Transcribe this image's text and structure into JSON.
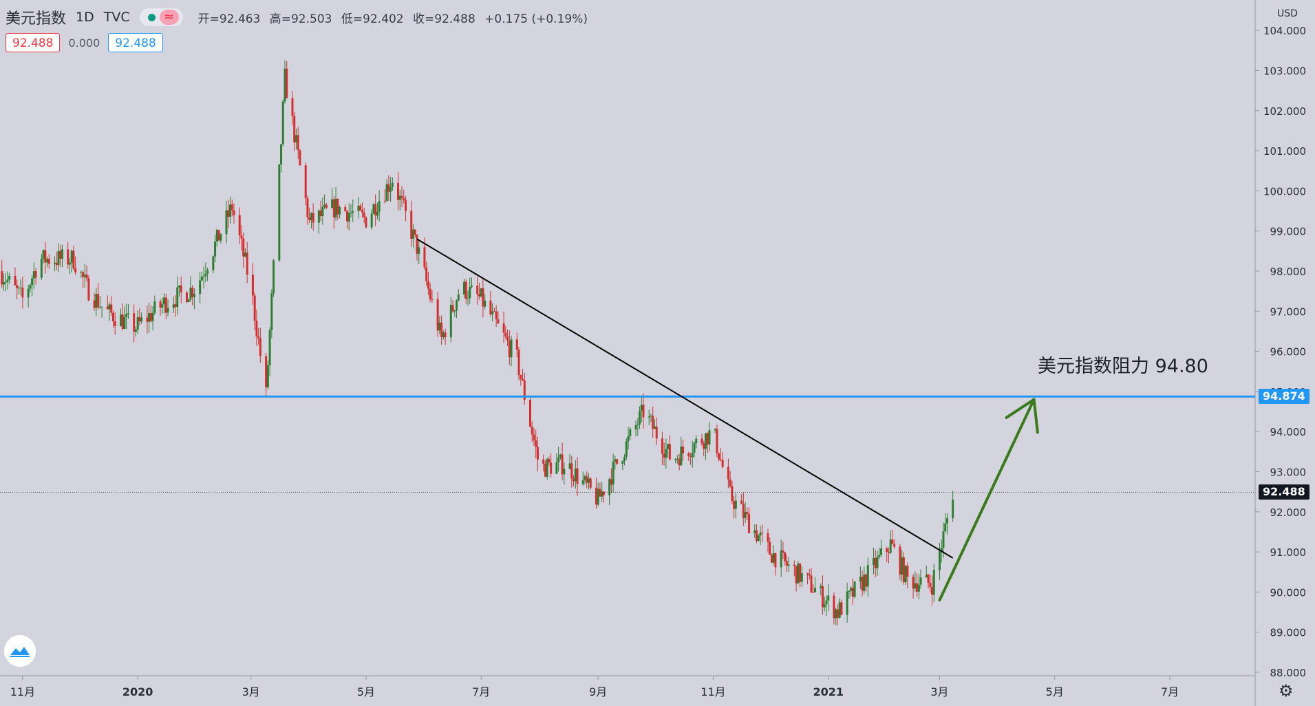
{
  "header": {
    "symbol": "美元指数",
    "interval": "1D",
    "exchange": "TVC",
    "wave_icon": "≈",
    "ohlc": {
      "open": "开=92.463",
      "high": "高=92.503",
      "low": "低=92.402",
      "close": "收=92.488",
      "change": "+0.175 (+0.19%)"
    }
  },
  "trade": {
    "sell": "92.488",
    "spread": "0.000",
    "buy": "92.488"
  },
  "price_scale": {
    "currency": "USD",
    "ticks": [
      "104.000",
      "103.000",
      "102.000",
      "101.000",
      "100.000",
      "99.000",
      "98.000",
      "97.000",
      "96.000",
      "95.000",
      "94.000",
      "93.000",
      "92.000",
      "91.000",
      "90.000",
      "89.000",
      "88.000"
    ]
  },
  "time_scale": {
    "ticks": [
      "11月",
      "2020",
      "3月",
      "5月",
      "7月",
      "9月",
      "11月",
      "2021",
      "3月",
      "5月",
      "7月"
    ]
  },
  "annotation": "美元指数阻力  94.80",
  "resistance_label": "94.874",
  "last_price_label": "92.488",
  "colors": {
    "up": "#2e7d32",
    "down": "#d32f2f",
    "resistance": "#2196f3",
    "arrow": "#3a7a1c",
    "trendline": "#000000"
  },
  "chart_data": {
    "type": "candlestick",
    "title": "美元指数",
    "interval": "1D",
    "y_range": [
      88.0,
      104.0
    ],
    "x_range": [
      "2019-10-20",
      "2021-08-01"
    ],
    "last_price": 92.488,
    "resistance_level": 94.874,
    "trendline": {
      "start": [
        "2020-05-28",
        98.8
      ],
      "end": [
        "2021-03-08",
        90.85
      ]
    },
    "arrow": {
      "start": [
        "2021-03-01",
        89.8
      ],
      "end": [
        "2021-04-20",
        94.8
      ]
    },
    "price_path": [
      [
        "2019-10-20",
        98.0
      ],
      [
        "2019-11-01",
        97.3
      ],
      [
        "2019-11-10",
        98.3
      ],
      [
        "2019-11-28",
        98.3
      ],
      [
        "2019-12-05",
        97.6
      ],
      [
        "2019-12-15",
        97.0
      ],
      [
        "2019-12-31",
        96.6
      ],
      [
        "2020-01-15",
        97.2
      ],
      [
        "2020-02-01",
        97.6
      ],
      [
        "2020-02-20",
        99.6
      ],
      [
        "2020-03-01",
        97.6
      ],
      [
        "2020-03-09",
        94.9
      ],
      [
        "2020-03-19",
        102.8
      ],
      [
        "2020-04-01",
        99.2
      ],
      [
        "2020-04-15",
        99.6
      ],
      [
        "2020-05-01",
        99.3
      ],
      [
        "2020-05-15",
        100.3
      ],
      [
        "2020-05-28",
        98.6
      ],
      [
        "2020-06-10",
        96.3
      ],
      [
        "2020-06-20",
        97.6
      ],
      [
        "2020-07-01",
        97.3
      ],
      [
        "2020-07-20",
        95.8
      ],
      [
        "2020-08-01",
        93.1
      ],
      [
        "2020-08-15",
        93.2
      ],
      [
        "2020-09-01",
        92.3
      ],
      [
        "2020-09-25",
        94.5
      ],
      [
        "2020-10-10",
        93.3
      ],
      [
        "2020-11-01",
        94.0
      ],
      [
        "2020-11-10",
        92.4
      ],
      [
        "2020-12-01",
        91.0
      ],
      [
        "2020-12-20",
        90.3
      ],
      [
        "2021-01-06",
        89.5
      ],
      [
        "2021-01-20",
        90.3
      ],
      [
        "2021-02-03",
        91.2
      ],
      [
        "2021-02-12",
        90.3
      ],
      [
        "2021-02-25",
        90.2
      ],
      [
        "2021-03-04",
        91.6
      ],
      [
        "2021-03-08",
        92.488
      ]
    ]
  }
}
